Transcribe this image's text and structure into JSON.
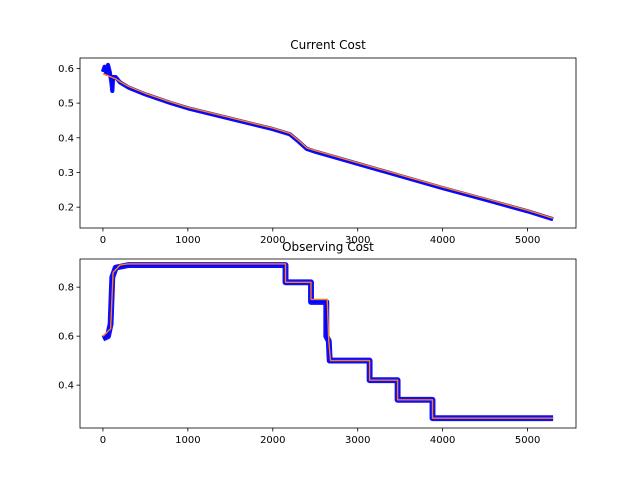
{
  "chart_data": [
    {
      "type": "line",
      "title": "Current Cost",
      "xlabel": "",
      "ylabel": "",
      "xlim": [
        -270,
        5570
      ],
      "ylim": [
        0.14,
        0.63
      ],
      "xticks": [
        0,
        1000,
        2000,
        3000,
        4000,
        5000
      ],
      "yticks": [
        0.2,
        0.3,
        0.4,
        0.5,
        0.6
      ],
      "xtick_labels": [
        "0",
        "1000",
        "2000",
        "3000",
        "4000",
        "5000"
      ],
      "ytick_labels": [
        "0.2",
        "0.3",
        "0.4",
        "0.5",
        "0.6"
      ],
      "noise_band": 0.006,
      "series": [
        {
          "color": "#0000ff",
          "points": [
            [
              0,
              0.59
            ],
            [
              20,
              0.605
            ],
            [
              40,
              0.585
            ],
            [
              60,
              0.61
            ],
            [
              80,
              0.59
            ],
            [
              100,
              0.56
            ],
            [
              110,
              0.535
            ],
            [
              120,
              0.575
            ],
            [
              150,
              0.575
            ],
            [
              200,
              0.56
            ],
            [
              300,
              0.545
            ],
            [
              500,
              0.525
            ],
            [
              800,
              0.5
            ],
            [
              1000,
              0.485
            ],
            [
              1500,
              0.455
            ],
            [
              2000,
              0.425
            ],
            [
              2200,
              0.41
            ],
            [
              2300,
              0.39
            ],
            [
              2400,
              0.368
            ],
            [
              2500,
              0.36
            ],
            [
              3000,
              0.325
            ],
            [
              3500,
              0.29
            ],
            [
              4000,
              0.255
            ],
            [
              4500,
              0.222
            ],
            [
              5000,
              0.188
            ],
            [
              5300,
              0.165
            ]
          ]
        },
        {
          "color": "#ff7f0e",
          "points": [
            [
              0,
              0.585
            ],
            [
              100,
              0.575
            ],
            [
              150,
              0.57
            ],
            [
              200,
              0.562
            ],
            [
              300,
              0.548
            ],
            [
              500,
              0.528
            ],
            [
              800,
              0.503
            ],
            [
              1000,
              0.488
            ],
            [
              1500,
              0.458
            ],
            [
              2000,
              0.428
            ],
            [
              2200,
              0.413
            ],
            [
              2300,
              0.393
            ],
            [
              2400,
              0.371
            ],
            [
              2500,
              0.363
            ],
            [
              3000,
              0.328
            ],
            [
              3500,
              0.293
            ],
            [
              4000,
              0.258
            ],
            [
              4500,
              0.225
            ],
            [
              5000,
              0.191
            ],
            [
              5300,
              0.168
            ]
          ]
        }
      ]
    },
    {
      "type": "line",
      "title": "Observing Cost",
      "xlabel": "",
      "ylabel": "",
      "xlim": [
        -270,
        5570
      ],
      "ylim": [
        0.225,
        0.915
      ],
      "xticks": [
        0,
        1000,
        2000,
        3000,
        4000,
        5000
      ],
      "yticks": [
        0.4,
        0.6,
        0.8
      ],
      "xtick_labels": [
        "0",
        "1000",
        "2000",
        "3000",
        "4000",
        "5000"
      ],
      "ytick_labels": [
        "0.4",
        "0.6",
        "0.8"
      ],
      "noise_band": 0.012,
      "series": [
        {
          "color": "#0000ff",
          "points": [
            [
              0,
              0.59
            ],
            [
              60,
              0.6
            ],
            [
              90,
              0.65
            ],
            [
              110,
              0.84
            ],
            [
              150,
              0.88
            ],
            [
              300,
              0.89
            ],
            [
              2150,
              0.89
            ],
            [
              2150,
              0.82
            ],
            [
              2450,
              0.82
            ],
            [
              2450,
              0.74
            ],
            [
              2630,
              0.74
            ],
            [
              2630,
              0.6
            ],
            [
              2660,
              0.58
            ],
            [
              2670,
              0.5
            ],
            [
              3140,
              0.5
            ],
            [
              3140,
              0.42
            ],
            [
              3470,
              0.42
            ],
            [
              3470,
              0.34
            ],
            [
              3880,
              0.34
            ],
            [
              3880,
              0.265
            ],
            [
              5300,
              0.265
            ]
          ]
        },
        {
          "color": "#ff7f0e",
          "points": [
            [
              0,
              0.6
            ],
            [
              90,
              0.63
            ],
            [
              120,
              0.86
            ],
            [
              200,
              0.89
            ],
            [
              300,
              0.895
            ],
            [
              2150,
              0.895
            ],
            [
              2150,
              0.82
            ],
            [
              2450,
              0.82
            ],
            [
              2450,
              0.75
            ],
            [
              2640,
              0.75
            ],
            [
              2660,
              0.58
            ],
            [
              2680,
              0.5
            ],
            [
              3140,
              0.5
            ],
            [
              3140,
              0.42
            ],
            [
              3470,
              0.42
            ],
            [
              3470,
              0.34
            ],
            [
              3880,
              0.34
            ],
            [
              3880,
              0.265
            ],
            [
              5300,
              0.265
            ]
          ]
        }
      ]
    }
  ]
}
